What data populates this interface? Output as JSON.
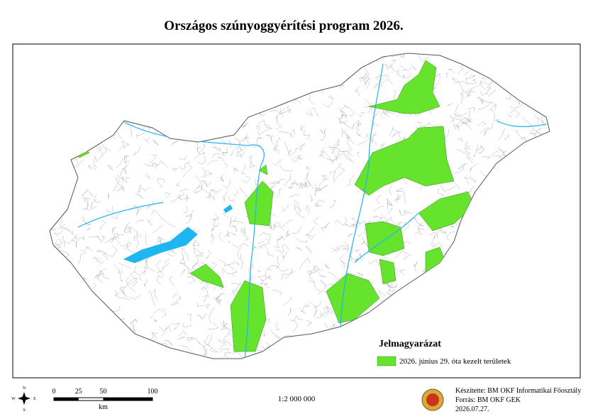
{
  "title": "Országos szúnyoggyérítési program 2026.",
  "legend": {
    "title": "Jelmagyarázat",
    "items": [
      {
        "label": "2026. június 29. óta kezelt területek",
        "color": "#66e32c"
      }
    ]
  },
  "scale_bar": {
    "ticks": [
      0,
      25,
      50,
      100
    ],
    "unit": "km"
  },
  "scale": "1:2 000 000",
  "compass": {
    "n": "N",
    "e": "E",
    "s": "S",
    "w": "W"
  },
  "credits": [
    "Készítette: BM OKF Informatikai Főosztály",
    "Forrás: BM OKF GEK",
    "2026.07.27."
  ]
}
